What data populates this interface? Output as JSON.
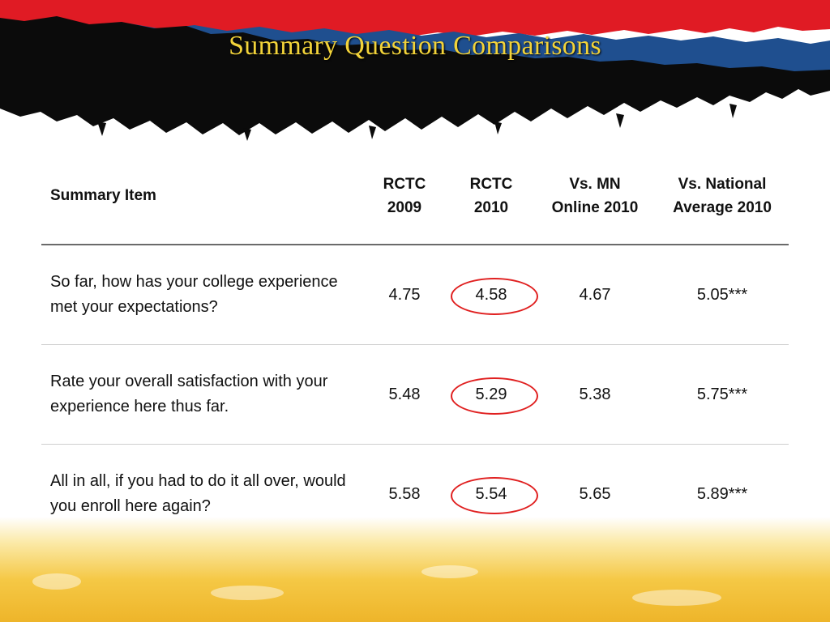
{
  "slide": {
    "title": "Summary Question Comparisons"
  },
  "colors": {
    "banner_black": "#0b0b0b",
    "banner_blue": "#1f4f8f",
    "banner_red": "#e01b24",
    "title": "#f2d33a",
    "highlight_circle": "#e02020",
    "footer_gold": "#f5c845"
  },
  "table": {
    "headers": {
      "item": "Summary Item",
      "rctc_2009": "RCTC\n2009",
      "rctc_2010": "RCTC\n2010",
      "mn_online_2010": "Vs. MN\nOnline 2010",
      "national_avg_2010": "Vs. National\nAverage 2010"
    },
    "rows": [
      {
        "item": "So far, how has your college experience met your expectations?",
        "rctc_2009": "4.75",
        "rctc_2010": "4.58",
        "mn_online_2010": "4.67",
        "national_avg_2010": "5.05***"
      },
      {
        "item": "Rate your overall satisfaction with your experience here thus far.",
        "rctc_2009": "5.48",
        "rctc_2010": "5.29",
        "mn_online_2010": "5.38",
        "national_avg_2010": "5.75***"
      },
      {
        "item": "All in all, if you had to do it all over, would you enroll here again?",
        "rctc_2009": "5.58",
        "rctc_2010": "5.54",
        "mn_online_2010": "5.65",
        "national_avg_2010": "5.89***"
      }
    ]
  }
}
